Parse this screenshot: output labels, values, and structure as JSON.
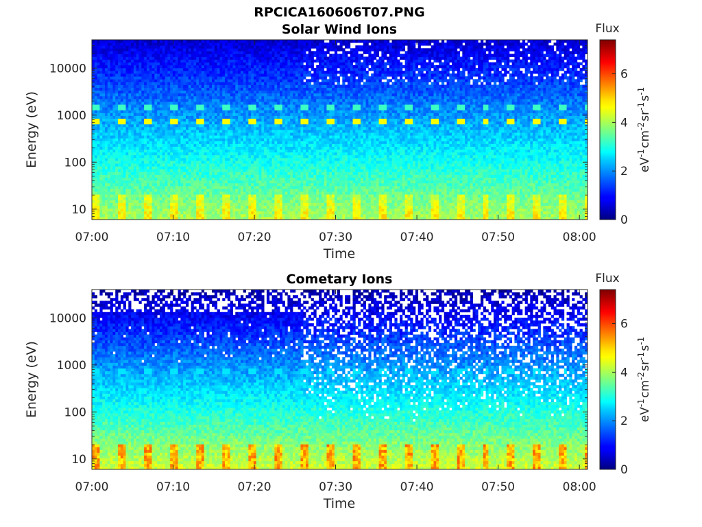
{
  "figure": {
    "filename_title": "RPCICA160606T07.PNG"
  },
  "chart_data": [
    {
      "type": "heatmap",
      "title": "Solar Wind Ions",
      "xlabel": "Time",
      "ylabel": "Energy (eV)",
      "x_ticks": [
        "07:00",
        "07:10",
        "07:20",
        "07:30",
        "07:40",
        "07:50",
        "08:00"
      ],
      "x_range": [
        "07:00",
        "08:01"
      ],
      "y_scale": "log",
      "y_ticks": [
        10,
        100,
        1000,
        10000
      ],
      "y_tick_labels": [
        "10",
        "100",
        "1000",
        "10000"
      ],
      "ylim": [
        6,
        40000
      ],
      "grid": false,
      "colorbar": {
        "title": "Flux",
        "unit_base": "eV",
        "unit_parts": [
          {
            "t": "eV",
            "sup": "-1"
          },
          {
            "t": "cm",
            "sup": "-2"
          },
          {
            "t": "sr",
            "sup": "-1"
          },
          {
            "t": "s",
            "sup": "-1"
          }
        ],
        "range": [
          0,
          7.4
        ],
        "ticks": [
          0,
          2,
          4,
          6
        ],
        "tick_labels": [
          "0",
          "2",
          "4",
          "6"
        ],
        "colormap": "jet"
      },
      "features": {
        "background_low_energy_flux": 4.0,
        "background_high_energy_flux": 0.6,
        "proton_beam_energy_eV": 750,
        "alpha_beam_energy_eV": 1500,
        "proton_beam_flux": 4.6,
        "alpha_beam_flux": 3.2,
        "beam_period_minutes": 3.2,
        "mode_change_time": "07:26"
      }
    },
    {
      "type": "heatmap",
      "title": "Cometary Ions",
      "xlabel": "Time",
      "ylabel": "Energy (eV)",
      "x_ticks": [
        "07:00",
        "07:10",
        "07:20",
        "07:30",
        "07:40",
        "07:50",
        "08:00"
      ],
      "x_range": [
        "07:00",
        "08:01"
      ],
      "y_scale": "log",
      "y_ticks": [
        10,
        100,
        1000,
        10000
      ],
      "y_tick_labels": [
        "10",
        "100",
        "1000",
        "10000"
      ],
      "ylim": [
        6,
        40000
      ],
      "grid": false,
      "colorbar": {
        "title": "Flux",
        "unit_parts": [
          {
            "t": "eV",
            "sup": "-1"
          },
          {
            "t": "cm",
            "sup": "-2"
          },
          {
            "t": "sr",
            "sup": "-1"
          },
          {
            "t": "s",
            "sup": "-1"
          }
        ],
        "range": [
          0,
          7.4
        ],
        "ticks": [
          0,
          2,
          4,
          6
        ],
        "tick_labels": [
          "0",
          "2",
          "4",
          "6"
        ],
        "colormap": "jet"
      },
      "features": {
        "background_low_energy_flux": 4.3,
        "background_high_energy_flux": 0.3,
        "proton_beam_energy_eV": 750,
        "proton_beam_flux": 2.6,
        "low_energy_peak_flux": 5.8,
        "beam_period_minutes": 3.2,
        "mode_change_time": "07:26",
        "empty_bins_fraction_after_mode_change": 0.35
      }
    }
  ]
}
